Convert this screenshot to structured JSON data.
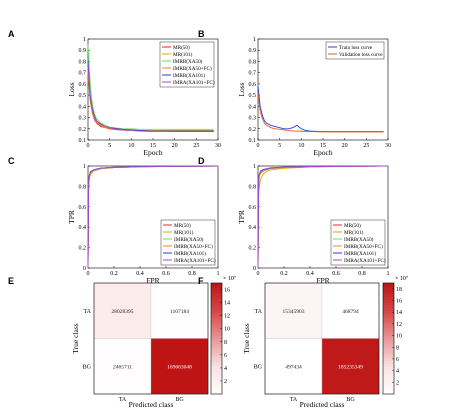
{
  "chart_data": [
    {
      "panel": "A",
      "type": "line",
      "xlabel": "Epoch",
      "ylabel": "Loss",
      "xlim": [
        0,
        30
      ],
      "ylim": [
        0.1,
        1.0
      ],
      "xticks": [
        0,
        5,
        10,
        15,
        20,
        25,
        30
      ],
      "yticks": [
        0.1,
        0.2,
        0.3,
        0.4,
        0.5,
        0.6,
        0.7,
        0.8,
        0.9,
        1
      ],
      "legend_position": "top-right",
      "x": [
        0,
        0.5,
        1,
        1.5,
        2,
        3,
        4,
        5,
        6,
        7,
        8,
        10,
        12,
        15,
        20,
        25,
        29
      ],
      "series": [
        {
          "name": "MR(50)",
          "color": "#ff2020",
          "values": [
            0.7,
            0.45,
            0.34,
            0.28,
            0.25,
            0.22,
            0.21,
            0.2,
            0.195,
            0.19,
            0.19,
            0.185,
            0.185,
            0.18,
            0.18,
            0.18,
            0.18
          ]
        },
        {
          "name": "MR(101)",
          "color": "#e8a400",
          "values": [
            0.72,
            0.46,
            0.35,
            0.29,
            0.26,
            0.23,
            0.21,
            0.205,
            0.2,
            0.195,
            0.19,
            0.19,
            0.185,
            0.185,
            0.185,
            0.185,
            0.185
          ]
        },
        {
          "name": "IMRB(XA50)",
          "color": "#66dd66",
          "values": [
            0.95,
            0.6,
            0.42,
            0.33,
            0.29,
            0.25,
            0.23,
            0.215,
            0.21,
            0.205,
            0.2,
            0.2,
            0.195,
            0.195,
            0.195,
            0.195,
            0.195
          ]
        },
        {
          "name": "IMRB(XA50+FC)",
          "color": "#ff7f27",
          "values": [
            0.74,
            0.47,
            0.36,
            0.3,
            0.26,
            0.23,
            0.22,
            0.21,
            0.2,
            0.195,
            0.19,
            0.185,
            0.18,
            0.175,
            0.175,
            0.175,
            0.175
          ]
        },
        {
          "name": "IMRB(XA101)",
          "color": "#2e3bd8",
          "values": [
            0.8,
            0.5,
            0.38,
            0.31,
            0.27,
            0.24,
            0.22,
            0.21,
            0.205,
            0.2,
            0.195,
            0.19,
            0.185,
            0.18,
            0.18,
            0.18,
            0.18
          ]
        },
        {
          "name": "IMRA(XA101+FC)",
          "color": "#a54bd0",
          "values": [
            0.76,
            0.48,
            0.37,
            0.3,
            0.27,
            0.24,
            0.22,
            0.21,
            0.2,
            0.195,
            0.19,
            0.185,
            0.18,
            0.178,
            0.175,
            0.175,
            0.175
          ]
        }
      ]
    },
    {
      "panel": "B",
      "type": "line",
      "xlabel": "Epoch",
      "ylabel": "Loss",
      "xlim": [
        0,
        30
      ],
      "ylim": [
        0.1,
        1.0
      ],
      "xticks": [
        0,
        5,
        10,
        15,
        20,
        25,
        30
      ],
      "yticks": [
        0.1,
        0.2,
        0.3,
        0.4,
        0.5,
        0.6,
        0.7,
        0.8,
        0.9,
        1
      ],
      "legend_position": "top-right",
      "x": [
        0,
        0.5,
        1,
        1.5,
        2,
        3,
        4,
        5,
        6,
        7,
        8,
        9,
        10,
        11,
        12,
        15,
        20,
        25,
        29
      ],
      "series": [
        {
          "name": "Train loss curve",
          "color": "#2e3bd8",
          "values": [
            0.58,
            0.4,
            0.32,
            0.27,
            0.25,
            0.23,
            0.22,
            0.21,
            0.2,
            0.2,
            0.21,
            0.23,
            0.2,
            0.185,
            0.18,
            0.175,
            0.175,
            0.175,
            0.175
          ]
        },
        {
          "name": "Validation loss curve",
          "color": "#e85a1b",
          "values": [
            0.52,
            0.36,
            0.29,
            0.25,
            0.23,
            0.21,
            0.2,
            0.195,
            0.19,
            0.185,
            0.18,
            0.18,
            0.178,
            0.175,
            0.175,
            0.172,
            0.172,
            0.172,
            0.172
          ]
        }
      ]
    },
    {
      "panel": "C",
      "type": "line",
      "xlabel": "FPR",
      "ylabel": "TPR",
      "xlim": [
        0,
        1
      ],
      "ylim": [
        0,
        1
      ],
      "xticks": [
        0,
        0.2,
        0.4,
        0.6,
        0.8,
        1
      ],
      "yticks": [
        0,
        0.2,
        0.4,
        0.6,
        0.8,
        1
      ],
      "legend_position": "bottom-right",
      "x": [
        0,
        0.005,
        0.01,
        0.02,
        0.04,
        0.07,
        0.1,
        0.2,
        0.4,
        0.7,
        1.0
      ],
      "series": [
        {
          "name": "MR(50)",
          "color": "#ff2020",
          "values": [
            0,
            0.8,
            0.88,
            0.92,
            0.95,
            0.965,
            0.975,
            0.985,
            0.992,
            0.997,
            1.0
          ]
        },
        {
          "name": "MR(101)",
          "color": "#e8a400",
          "values": [
            0,
            0.78,
            0.87,
            0.92,
            0.95,
            0.96,
            0.972,
            0.985,
            0.992,
            0.997,
            1.0
          ]
        },
        {
          "name": "IMRB(XA50)",
          "color": "#66dd66",
          "values": [
            0,
            0.82,
            0.89,
            0.93,
            0.955,
            0.965,
            0.975,
            0.985,
            0.992,
            0.997,
            1.0
          ]
        },
        {
          "name": "IMRB(XA50+FC)",
          "color": "#ff7f27",
          "values": [
            0,
            0.84,
            0.9,
            0.94,
            0.96,
            0.97,
            0.978,
            0.987,
            0.993,
            0.997,
            1.0
          ]
        },
        {
          "name": "IMRB(XA101)",
          "color": "#2e3bd8",
          "values": [
            0,
            0.86,
            0.91,
            0.945,
            0.96,
            0.972,
            0.98,
            0.988,
            0.994,
            0.997,
            1.0
          ]
        },
        {
          "name": "IMRA(XA101+FC)",
          "color": "#a54bd0",
          "values": [
            0,
            0.85,
            0.91,
            0.94,
            0.96,
            0.97,
            0.978,
            0.987,
            0.993,
            0.997,
            1.0
          ]
        }
      ]
    },
    {
      "panel": "D",
      "type": "line",
      "xlabel": "FPR",
      "ylabel": "TPR",
      "xlim": [
        0,
        1
      ],
      "ylim": [
        0,
        1
      ],
      "xticks": [
        0,
        0.2,
        0.4,
        0.6,
        0.8,
        1
      ],
      "yticks": [
        0,
        0.2,
        0.4,
        0.6,
        0.8,
        1
      ],
      "legend_position": "bottom-right",
      "x": [
        0,
        0.005,
        0.01,
        0.02,
        0.04,
        0.07,
        0.1,
        0.2,
        0.4,
        0.7,
        1.0
      ],
      "series": [
        {
          "name": "MR(50)",
          "color": "#ff2020",
          "values": [
            0,
            0.82,
            0.9,
            0.93,
            0.95,
            0.965,
            0.975,
            0.985,
            0.992,
            0.997,
            1.0
          ]
        },
        {
          "name": "MR(101)",
          "color": "#e8a400",
          "values": [
            0,
            0.7,
            0.8,
            0.87,
            0.92,
            0.95,
            0.962,
            0.978,
            0.99,
            0.997,
            1.0
          ]
        },
        {
          "name": "IMRB(XA50)",
          "color": "#66dd66",
          "values": [
            0,
            0.84,
            0.9,
            0.935,
            0.955,
            0.965,
            0.975,
            0.985,
            0.992,
            0.997,
            1.0
          ]
        },
        {
          "name": "IMRB(XA50+FC)",
          "color": "#ff7f27",
          "values": [
            0,
            0.86,
            0.91,
            0.94,
            0.96,
            0.97,
            0.978,
            0.987,
            0.993,
            0.997,
            1.0
          ]
        },
        {
          "name": "IMRB(XA101)",
          "color": "#2e3bd8",
          "values": [
            0,
            0.88,
            0.92,
            0.95,
            0.965,
            0.975,
            0.982,
            0.99,
            0.995,
            0.998,
            1.0
          ]
        },
        {
          "name": "IMRA(XA101+FC)",
          "color": "#a54bd0",
          "values": [
            0,
            0.87,
            0.92,
            0.945,
            0.962,
            0.972,
            0.98,
            0.988,
            0.994,
            0.997,
            1.0
          ]
        }
      ]
    },
    {
      "panel": "E",
      "type": "heatmap",
      "xlabel": "Predicted class",
      "ylabel": "True class",
      "x_categories": [
        "TA",
        "BG"
      ],
      "y_categories": [
        "TA",
        "BG"
      ],
      "values": [
        [
          28028395,
          1107184
        ],
        [
          2465711,
          169663048
        ]
      ],
      "value_labels": [
        [
          "28028395",
          "1107184"
        ],
        [
          "2465711",
          "169663048"
        ]
      ],
      "colorbar": {
        "ticks": [
          2,
          4,
          6,
          8,
          10,
          12,
          14,
          16
        ],
        "multiplier": "× 10⁷",
        "range": [
          0,
          17
        ]
      }
    },
    {
      "panel": "F",
      "type": "heatmap",
      "xlabel": "Predicted class",
      "ylabel": "True class",
      "x_categories": [
        "TA",
        "BG"
      ],
      "y_categories": [
        "TA",
        "BG"
      ],
      "values": [
        [
          15345903,
          468794
        ],
        [
          497434,
          185235349
        ]
      ],
      "value_labels": [
        [
          "15345903",
          "468794"
        ],
        [
          "497434",
          "185235349"
        ]
      ],
      "colorbar": {
        "ticks": [
          2,
          4,
          6,
          8,
          10,
          12,
          14,
          16,
          18
        ],
        "multiplier": "× 10⁷",
        "range": [
          0,
          19
        ]
      }
    }
  ]
}
